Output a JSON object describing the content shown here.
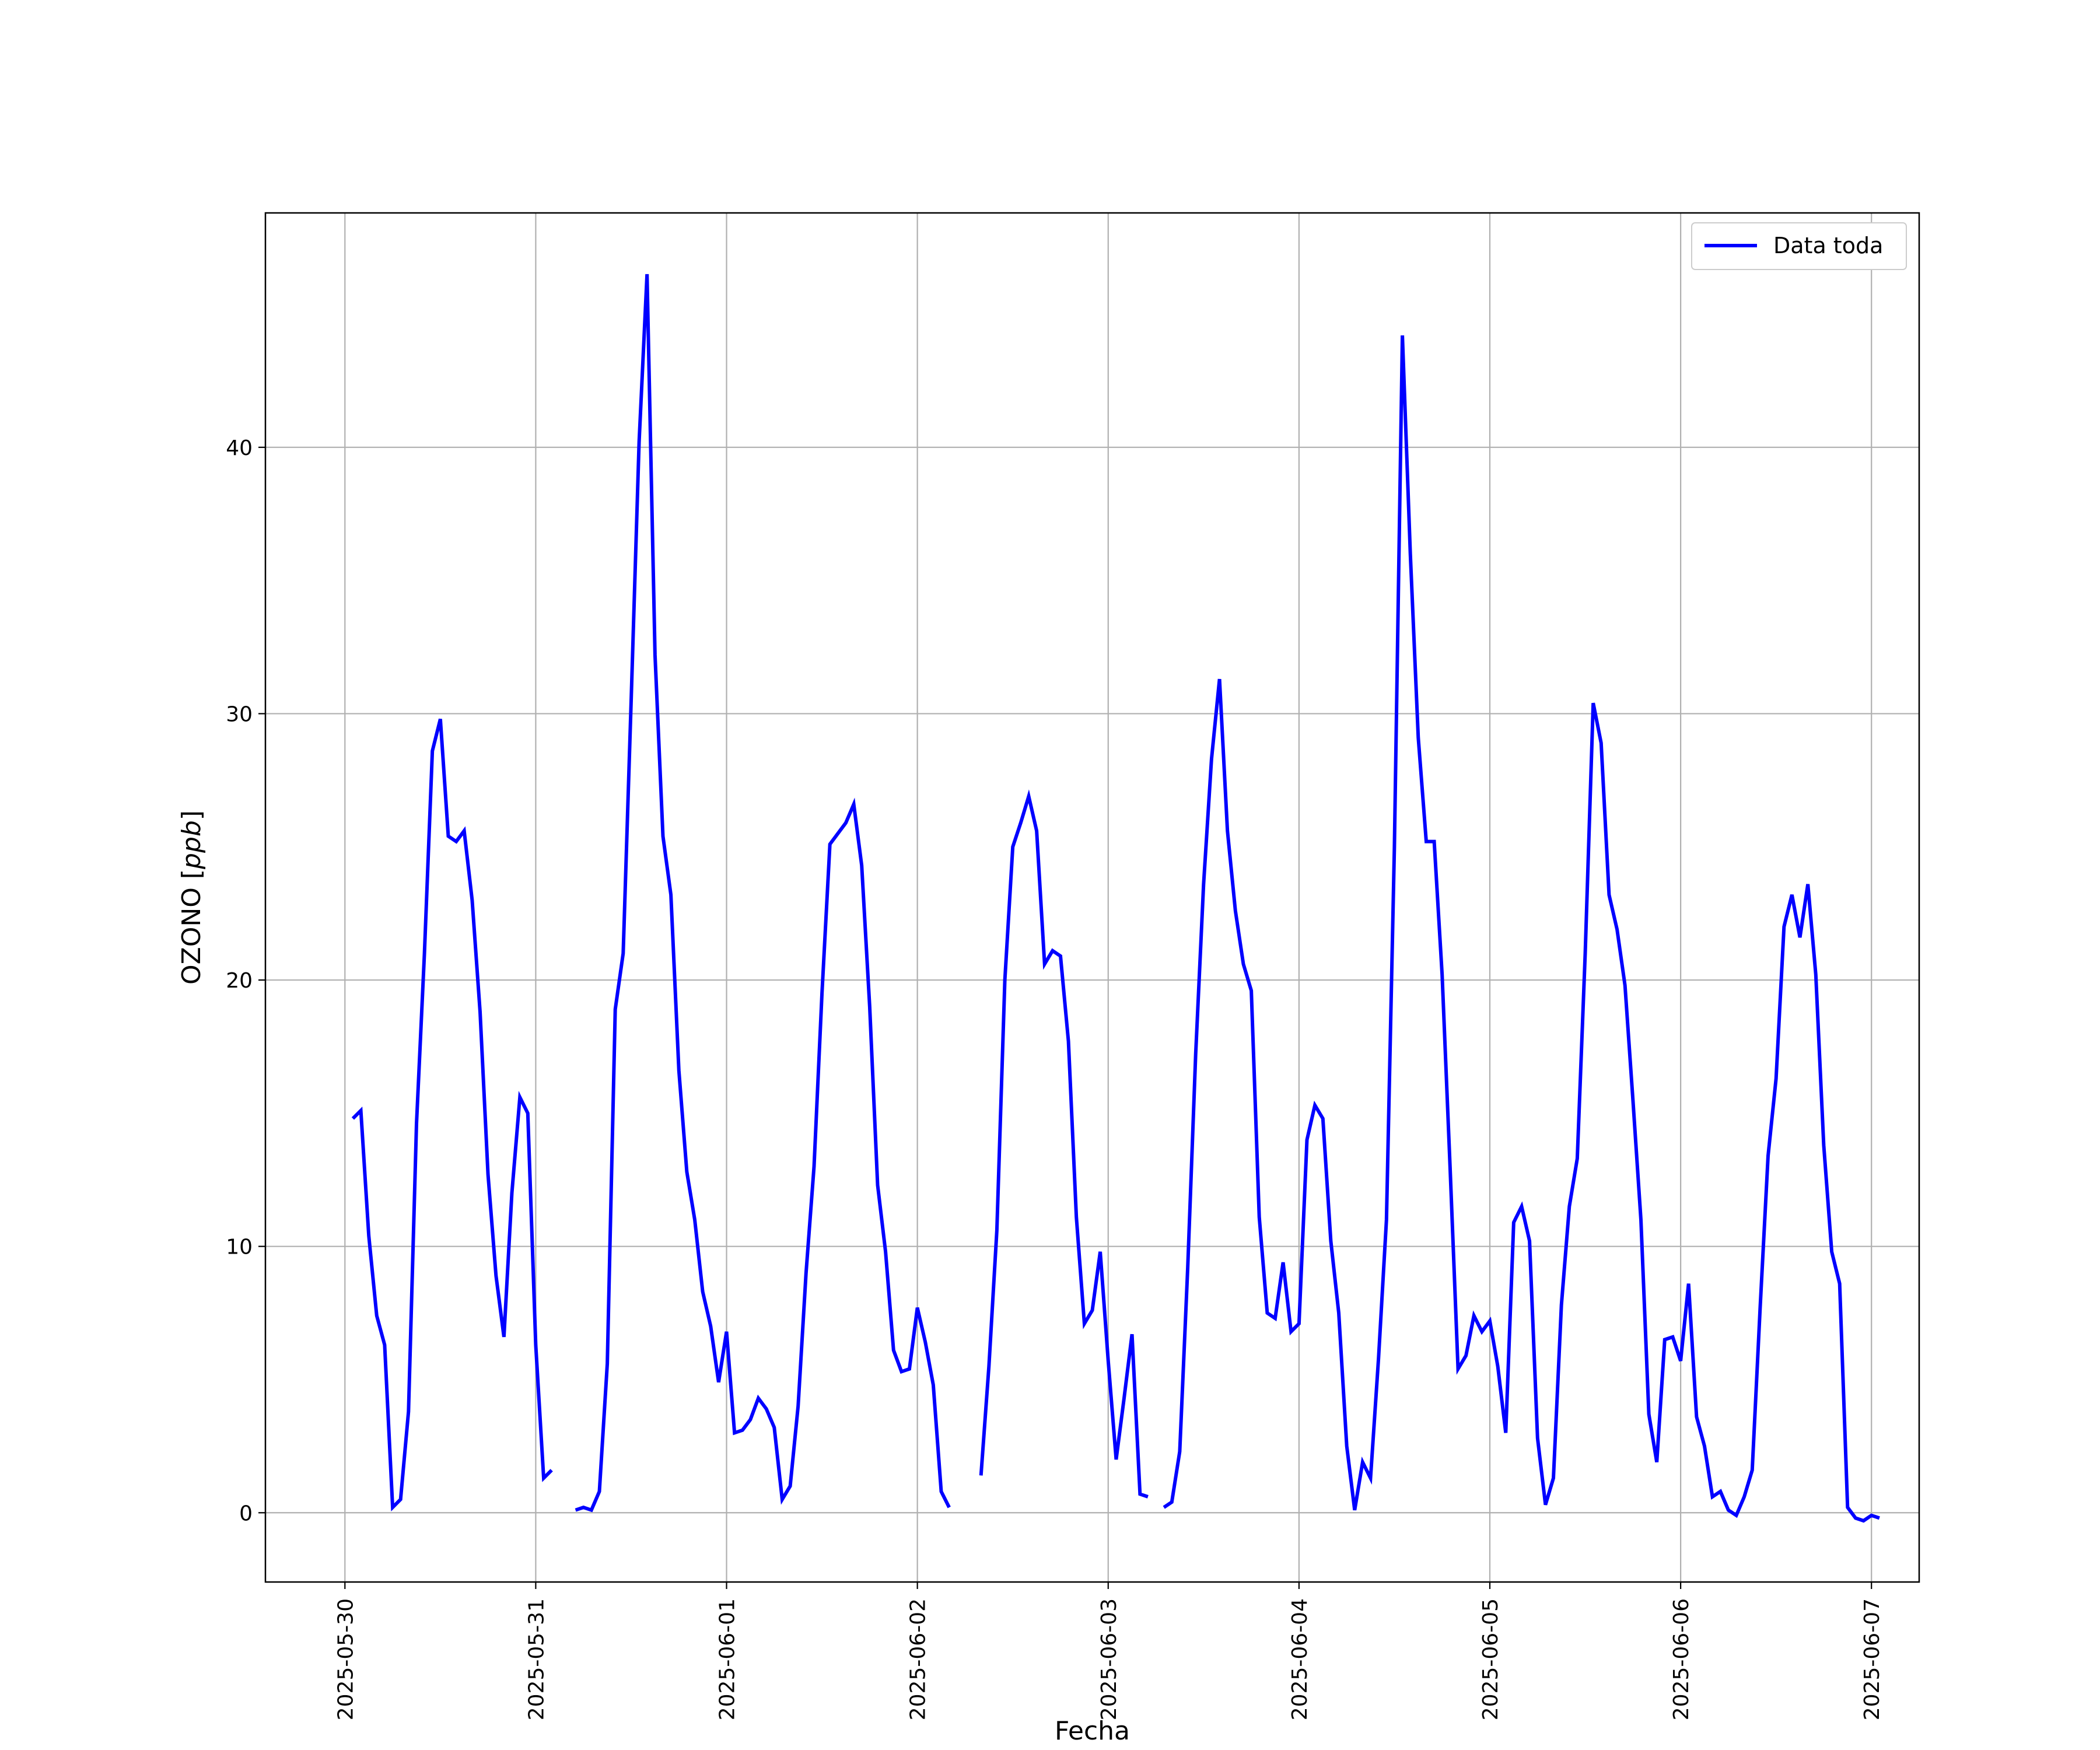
{
  "chart_data": {
    "type": "line",
    "xlabel": "Fecha",
    "ylabel": "OZONO [ppb]",
    "ylabel_plain": "OZONO [",
    "ylabel_unit": "ppb",
    "ylabel_close": "]",
    "xlim": [
      "2025-05-29T14:00",
      "2025-06-07T06:00"
    ],
    "ylim": [
      -2.6,
      48.8
    ],
    "grid": true,
    "legend": "top-right",
    "x_ticks": [
      "2025-05-30",
      "2025-05-31",
      "2025-06-01",
      "2025-06-02",
      "2025-06-03",
      "2025-06-04",
      "2025-06-05",
      "2025-06-06",
      "2025-06-07"
    ],
    "y_ticks": [
      0,
      10,
      20,
      30,
      40
    ],
    "series": [
      {
        "name": "Data toda",
        "color": "#0000ff",
        "points": [
          [
            "2025-05-30T01:00",
            14.8
          ],
          [
            "2025-05-30T02:00",
            15.1
          ],
          [
            "2025-05-30T03:00",
            10.4
          ],
          [
            "2025-05-30T04:00",
            7.4
          ],
          [
            "2025-05-30T05:00",
            6.3
          ],
          [
            "2025-05-30T06:00",
            0.2
          ],
          [
            "2025-05-30T07:00",
            0.5
          ],
          [
            "2025-05-30T08:00",
            3.8
          ],
          [
            "2025-05-30T09:00",
            14.6
          ],
          [
            "2025-05-30T10:00",
            21.0
          ],
          [
            "2025-05-30T11:00",
            28.6
          ],
          [
            "2025-05-30T12:00",
            29.8
          ],
          [
            "2025-05-30T13:00",
            25.4
          ],
          [
            "2025-05-30T14:00",
            25.2
          ],
          [
            "2025-05-30T15:00",
            25.6
          ],
          [
            "2025-05-30T16:00",
            23.0
          ],
          [
            "2025-05-30T17:00",
            18.8
          ],
          [
            "2025-05-30T18:00",
            12.7
          ],
          [
            "2025-05-30T19:00",
            8.9
          ],
          [
            "2025-05-30T20:00",
            6.6
          ],
          [
            "2025-05-30T21:00",
            12.0
          ],
          [
            "2025-05-30T22:00",
            15.6
          ],
          [
            "2025-05-30T23:00",
            15.0
          ],
          [
            "2025-05-31T00:00",
            6.3
          ],
          [
            "2025-05-31T01:00",
            1.3
          ],
          [
            "2025-05-31T02:00",
            1.6
          ],
          [
            null,
            null
          ],
          [
            "2025-05-31T05:00",
            0.1
          ],
          [
            "2025-05-31T06:00",
            0.2
          ],
          [
            "2025-05-31T07:00",
            0.1
          ],
          [
            "2025-05-31T08:00",
            0.8
          ],
          [
            "2025-05-31T09:00",
            5.6
          ],
          [
            "2025-05-31T10:00",
            18.9
          ],
          [
            "2025-05-31T11:00",
            21.0
          ],
          [
            "2025-05-31T12:00",
            30.5
          ],
          [
            "2025-05-31T13:00",
            40.2
          ],
          [
            "2025-05-31T14:00",
            46.5
          ],
          [
            "2025-05-31T15:00",
            32.2
          ],
          [
            "2025-05-31T16:00",
            25.4
          ],
          [
            "2025-05-31T17:00",
            23.2
          ],
          [
            "2025-05-31T18:00",
            16.6
          ],
          [
            "2025-05-31T19:00",
            12.8
          ],
          [
            "2025-05-31T20:00",
            11.0
          ],
          [
            "2025-05-31T21:00",
            8.3
          ],
          [
            "2025-05-31T22:00",
            7.0
          ],
          [
            "2025-05-31T23:00",
            4.9
          ],
          [
            "2025-06-01T00:00",
            6.8
          ],
          [
            "2025-06-01T01:00",
            3.0
          ],
          [
            "2025-06-01T02:00",
            3.1
          ],
          [
            "2025-06-01T03:00",
            3.5
          ],
          [
            "2025-06-01T04:00",
            4.3
          ],
          [
            "2025-06-01T05:00",
            3.9
          ],
          [
            "2025-06-01T06:00",
            3.2
          ],
          [
            "2025-06-01T07:00",
            0.5
          ],
          [
            "2025-06-01T08:00",
            1.0
          ],
          [
            "2025-06-01T09:00",
            4.0
          ],
          [
            "2025-06-01T10:00",
            9.0
          ],
          [
            "2025-06-01T11:00",
            13.0
          ],
          [
            "2025-06-01T12:00",
            19.5
          ],
          [
            "2025-06-01T13:00",
            25.1
          ],
          [
            "2025-06-01T14:00",
            25.5
          ],
          [
            "2025-06-01T15:00",
            25.9
          ],
          [
            "2025-06-01T16:00",
            26.6
          ],
          [
            "2025-06-01T17:00",
            24.3
          ],
          [
            "2025-06-01T18:00",
            19.0
          ],
          [
            "2025-06-01T19:00",
            12.3
          ],
          [
            "2025-06-01T20:00",
            9.8
          ],
          [
            "2025-06-01T21:00",
            6.1
          ],
          [
            "2025-06-01T22:00",
            5.3
          ],
          [
            "2025-06-01T23:00",
            5.4
          ],
          [
            "2025-06-02T00:00",
            7.7
          ],
          [
            "2025-06-02T01:00",
            6.4
          ],
          [
            "2025-06-02T02:00",
            4.8
          ],
          [
            "2025-06-02T03:00",
            0.8
          ],
          [
            "2025-06-02T04:00",
            0.2
          ],
          [
            null,
            null
          ],
          [
            "2025-06-02T08:00",
            1.4
          ],
          [
            "2025-06-02T09:00",
            5.5
          ],
          [
            "2025-06-02T10:00",
            10.6
          ],
          [
            "2025-06-02T11:00",
            20.0
          ],
          [
            "2025-06-02T12:00",
            25.0
          ],
          [
            "2025-06-02T13:00",
            25.9
          ],
          [
            "2025-06-02T14:00",
            26.9
          ],
          [
            "2025-06-02T15:00",
            25.6
          ],
          [
            "2025-06-02T16:00",
            20.6
          ],
          [
            "2025-06-02T17:00",
            21.1
          ],
          [
            "2025-06-02T18:00",
            20.9
          ],
          [
            "2025-06-02T19:00",
            17.7
          ],
          [
            "2025-06-02T20:00",
            11.1
          ],
          [
            "2025-06-02T21:00",
            7.1
          ],
          [
            "2025-06-02T22:00",
            7.6
          ],
          [
            "2025-06-02T23:00",
            9.8
          ],
          [
            "2025-06-03T00:00",
            5.7
          ],
          [
            "2025-06-03T01:00",
            2.0
          ],
          [
            "2025-06-03T02:00",
            4.3
          ],
          [
            "2025-06-03T03:00",
            6.7
          ],
          [
            "2025-06-03T04:00",
            0.7
          ],
          [
            "2025-06-03T05:00",
            0.6
          ],
          [
            null,
            null
          ],
          [
            "2025-06-03T07:00",
            0.2
          ],
          [
            "2025-06-03T08:00",
            0.4
          ],
          [
            "2025-06-03T09:00",
            2.3
          ],
          [
            "2025-06-03T10:00",
            9.2
          ],
          [
            "2025-06-03T11:00",
            17.2
          ],
          [
            "2025-06-03T12:00",
            23.6
          ],
          [
            "2025-06-03T13:00",
            28.3
          ],
          [
            "2025-06-03T14:00",
            31.3
          ],
          [
            "2025-06-03T15:00",
            25.6
          ],
          [
            "2025-06-03T16:00",
            22.6
          ],
          [
            "2025-06-03T17:00",
            20.6
          ],
          [
            "2025-06-03T18:00",
            19.6
          ],
          [
            "2025-06-03T19:00",
            11.1
          ],
          [
            "2025-06-03T20:00",
            7.5
          ],
          [
            "2025-06-03T21:00",
            7.3
          ],
          [
            "2025-06-03T22:00",
            9.4
          ],
          [
            "2025-06-03T23:00",
            6.8
          ],
          [
            "2025-06-04T00:00",
            7.1
          ],
          [
            "2025-06-04T01:00",
            14.0
          ],
          [
            "2025-06-04T02:00",
            15.3
          ],
          [
            "2025-06-04T03:00",
            14.8
          ],
          [
            "2025-06-04T04:00",
            10.2
          ],
          [
            "2025-06-04T05:00",
            7.5
          ],
          [
            "2025-06-04T06:00",
            2.5
          ],
          [
            "2025-06-04T07:00",
            0.1
          ],
          [
            "2025-06-04T08:00",
            1.9
          ],
          [
            "2025-06-04T09:00",
            1.3
          ],
          [
            "2025-06-04T10:00",
            5.8
          ],
          [
            "2025-06-04T11:00",
            11.0
          ],
          [
            "2025-06-04T12:00",
            25.0
          ],
          [
            "2025-06-04T13:00",
            44.2
          ],
          [
            "2025-06-04T14:00",
            36.0
          ],
          [
            "2025-06-04T15:00",
            29.1
          ],
          [
            "2025-06-04T16:00",
            25.2
          ],
          [
            "2025-06-04T17:00",
            25.2
          ],
          [
            "2025-06-04T18:00",
            20.2
          ],
          [
            "2025-06-04T19:00",
            13.0
          ],
          [
            "2025-06-04T20:00",
            5.4
          ],
          [
            "2025-06-04T21:00",
            5.9
          ],
          [
            "2025-06-04T22:00",
            7.4
          ],
          [
            "2025-06-04T23:00",
            6.8
          ],
          [
            "2025-06-05T00:00",
            7.2
          ],
          [
            "2025-06-05T01:00",
            5.5
          ],
          [
            "2025-06-05T02:00",
            3.0
          ],
          [
            "2025-06-05T03:00",
            10.9
          ],
          [
            "2025-06-05T04:00",
            11.5
          ],
          [
            "2025-06-05T05:00",
            10.2
          ],
          [
            "2025-06-05T06:00",
            2.8
          ],
          [
            "2025-06-05T07:00",
            0.3
          ],
          [
            "2025-06-05T08:00",
            1.3
          ],
          [
            "2025-06-05T09:00",
            7.8
          ],
          [
            "2025-06-05T10:00",
            11.5
          ],
          [
            "2025-06-05T11:00",
            13.3
          ],
          [
            "2025-06-05T12:00",
            21.0
          ],
          [
            "2025-06-05T13:00",
            30.4
          ],
          [
            "2025-06-05T14:00",
            28.9
          ],
          [
            "2025-06-05T15:00",
            23.2
          ],
          [
            "2025-06-05T16:00",
            21.9
          ],
          [
            "2025-06-05T17:00",
            19.8
          ],
          [
            "2025-06-05T18:00",
            15.5
          ],
          [
            "2025-06-05T19:00",
            11.0
          ],
          [
            "2025-06-05T20:00",
            3.7
          ],
          [
            "2025-06-05T21:00",
            1.9
          ],
          [
            "2025-06-05T22:00",
            6.5
          ],
          [
            "2025-06-05T23:00",
            6.6
          ],
          [
            "2025-06-06T00:00",
            5.7
          ],
          [
            "2025-06-06T01:00",
            8.6
          ],
          [
            "2025-06-06T02:00",
            3.6
          ],
          [
            "2025-06-06T03:00",
            2.5
          ],
          [
            "2025-06-06T04:00",
            0.6
          ],
          [
            "2025-06-06T05:00",
            0.8
          ],
          [
            "2025-06-06T06:00",
            0.1
          ],
          [
            "2025-06-06T07:00",
            -0.1
          ],
          [
            "2025-06-06T08:00",
            0.6
          ],
          [
            "2025-06-06T09:00",
            1.6
          ],
          [
            "2025-06-06T10:00",
            7.7
          ],
          [
            "2025-06-06T11:00",
            13.4
          ],
          [
            "2025-06-06T12:00",
            16.3
          ],
          [
            "2025-06-06T13:00",
            22.0
          ],
          [
            "2025-06-06T14:00",
            23.2
          ],
          [
            "2025-06-06T15:00",
            21.6
          ],
          [
            "2025-06-06T16:00",
            23.6
          ],
          [
            "2025-06-06T17:00",
            20.2
          ],
          [
            "2025-06-06T18:00",
            13.8
          ],
          [
            "2025-06-06T19:00",
            9.8
          ],
          [
            "2025-06-06T20:00",
            8.6
          ],
          [
            "2025-06-06T21:00",
            0.2
          ],
          [
            "2025-06-06T22:00",
            -0.2
          ],
          [
            "2025-06-06T23:00",
            -0.3
          ],
          [
            "2025-06-07T00:00",
            -0.1
          ],
          [
            "2025-06-07T01:00",
            -0.2
          ]
        ]
      }
    ]
  }
}
